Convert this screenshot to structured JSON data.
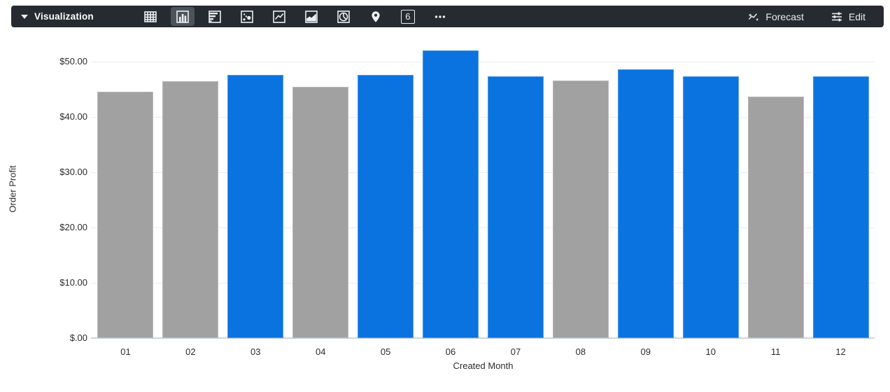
{
  "toolbar": {
    "label": "Visualization",
    "background": "#262b31",
    "selected_icon_background": "#4c545b",
    "icon_color": "#eceff1",
    "icons": [
      {
        "name": "table-icon",
        "selected": false
      },
      {
        "name": "column-chart-icon",
        "selected": true
      },
      {
        "name": "bar-chart-icon",
        "selected": false
      },
      {
        "name": "scatter-chart-icon",
        "selected": false
      },
      {
        "name": "line-chart-icon",
        "selected": false
      },
      {
        "name": "area-chart-icon",
        "selected": false
      },
      {
        "name": "pie-chart-icon",
        "selected": false
      },
      {
        "name": "map-pin-icon",
        "selected": false
      },
      {
        "name": "single-value-icon",
        "selected": false
      },
      {
        "name": "more-options-icon",
        "selected": false
      }
    ],
    "single_value_glyph": "6",
    "forecast_label": "Forecast",
    "edit_label": "Edit"
  },
  "chart_data": {
    "type": "bar",
    "title": "",
    "xlabel": "Created Month",
    "ylabel": "Order Profit",
    "categories": [
      "01",
      "02",
      "03",
      "04",
      "05",
      "06",
      "07",
      "08",
      "09",
      "10",
      "11",
      "12"
    ],
    "values": [
      44.5,
      46.4,
      47.6,
      45.5,
      47.6,
      52.0,
      47.3,
      46.6,
      48.6,
      47.3,
      43.7,
      47.3
    ],
    "bar_colors": [
      "gray",
      "gray",
      "blue",
      "gray",
      "blue",
      "blue",
      "blue",
      "gray",
      "blue",
      "blue",
      "gray",
      "blue"
    ],
    "colors": {
      "blue": "#0b73e0",
      "gray": "#a1a1a1"
    },
    "y_ticks": [
      0,
      10,
      20,
      30,
      40,
      50
    ],
    "y_tick_labels": [
      "$.00",
      "$10.00",
      "$20.00",
      "$30.00",
      "$40.00",
      "$50.00"
    ],
    "ylim": [
      0,
      53.5
    ],
    "grid": true,
    "legend": false
  }
}
